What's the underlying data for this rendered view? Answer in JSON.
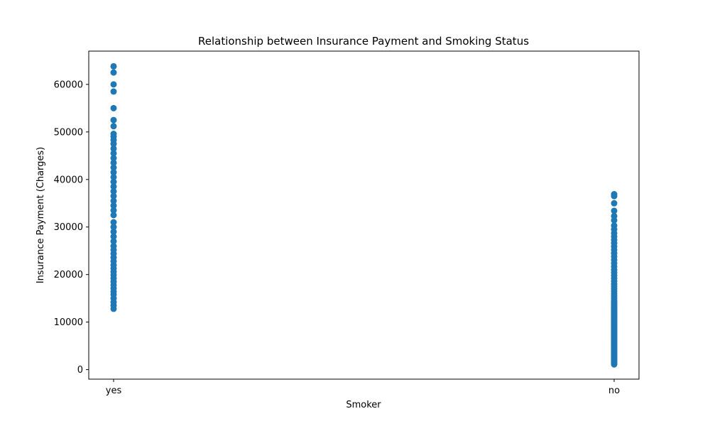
{
  "chart_data": {
    "type": "scatter",
    "title": "Relationship between Insurance Payment and Smoking Status",
    "xlabel": "Smoker",
    "ylabel": "Insurance Payment (Charges)",
    "categories": [
      "yes",
      "no"
    ],
    "ylim": [
      -2000,
      67000
    ],
    "yticks": [
      0,
      10000,
      20000,
      30000,
      40000,
      50000,
      60000
    ],
    "ytick_labels": [
      "0",
      "10000",
      "20000",
      "30000",
      "40000",
      "50000",
      "60000"
    ],
    "grid": false,
    "marker_color": "#1f77b4",
    "series": [
      {
        "category": "yes",
        "values": [
          12800,
          13500,
          14200,
          15000,
          15800,
          16400,
          17100,
          17800,
          18500,
          19200,
          19900,
          20600,
          21300,
          22000,
          22800,
          23600,
          24400,
          25200,
          26000,
          27000,
          28000,
          29000,
          30000,
          31000,
          32500,
          33500,
          34500,
          35500,
          36500,
          37500,
          38500,
          39500,
          40500,
          41500,
          42500,
          43500,
          44500,
          45500,
          46500,
          47500,
          48300,
          49000,
          49600,
          51200,
          52500,
          55000,
          58500,
          60000,
          62500,
          63800
        ]
      },
      {
        "category": "no",
        "values": [
          1100,
          1300,
          1500,
          1700,
          1900,
          2100,
          2300,
          2500,
          2700,
          2900,
          3100,
          3300,
          3500,
          3700,
          3900,
          4100,
          4300,
          4500,
          4700,
          4900,
          5100,
          5300,
          5500,
          5700,
          5900,
          6100,
          6300,
          6500,
          6700,
          6900,
          7100,
          7300,
          7500,
          7700,
          7900,
          8100,
          8300,
          8500,
          8700,
          8900,
          9100,
          9300,
          9500,
          9700,
          9900,
          10100,
          10300,
          10500,
          10700,
          10900,
          11100,
          11300,
          11500,
          11700,
          11900,
          12100,
          12300,
          12500,
          12700,
          12900,
          13100,
          13300,
          13600,
          13900,
          14200,
          14500,
          15000,
          15500,
          16000,
          16500,
          17000,
          17500,
          18000,
          18600,
          19200,
          19800,
          20400,
          21000,
          21700,
          22400,
          23100,
          23800,
          24500,
          25200,
          25900,
          26600,
          27300,
          28000,
          28700,
          29500,
          30300,
          31400,
          32300,
          33400,
          35000,
          36500,
          36900
        ]
      }
    ]
  }
}
